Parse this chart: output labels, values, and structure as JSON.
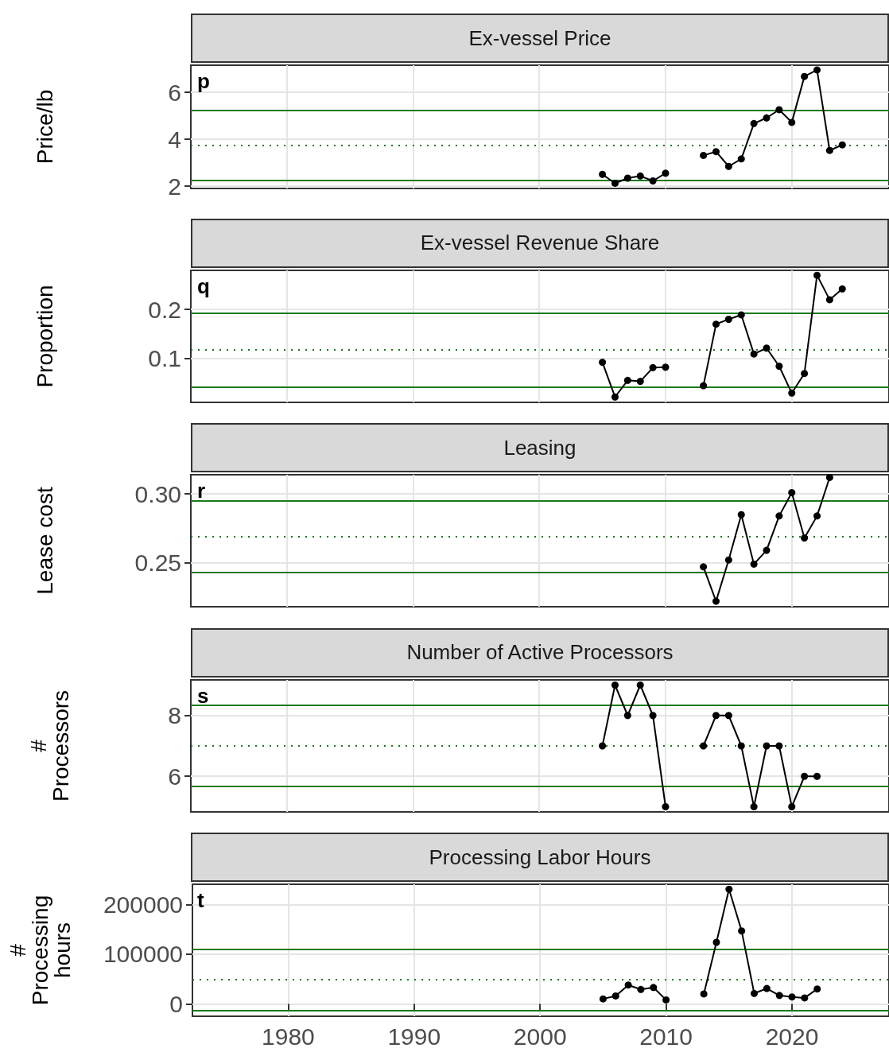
{
  "chart_data": [
    {
      "type": "line",
      "title": "Ex-vessel Price",
      "ylabel": "Price/lb",
      "annotations": [
        "p"
      ],
      "x": [
        2005,
        2006,
        2007,
        2008,
        2009,
        2010,
        2011,
        2012,
        2013,
        2014,
        2015,
        2016,
        2017,
        2018,
        2019,
        2020,
        2021,
        2022,
        2023,
        2024
      ],
      "series": [
        {
          "color": "#000000",
          "values": [
            2.5,
            2.12,
            2.34,
            2.43,
            2.22,
            2.55,
            null,
            null,
            3.31,
            3.47,
            2.84,
            3.16,
            4.67,
            4.91,
            5.26,
            4.72,
            6.68,
            6.96,
            3.52,
            3.76
          ]
        }
      ],
      "xlim": [
        1972.4,
        2027.7
      ],
      "xticks": [
        1980,
        1990,
        2000,
        2010,
        2020
      ],
      "ylim": [
        1.9,
        7.16
      ],
      "yticks": [
        2,
        4,
        6
      ],
      "tick_labels": "y",
      "grid": true,
      "marker": "circle",
      "line_style": "solid",
      "ref_lines": [
        {
          "axis": "y",
          "value": 5.24,
          "color": "#1a7a1a",
          "line_style": "solid"
        },
        {
          "axis": "y",
          "value": 3.73,
          "color": "#1a7a1a",
          "line_style": "dotted"
        },
        {
          "axis": "y",
          "value": 2.26,
          "color": "#1a7a1a",
          "line_style": "solid"
        }
      ]
    },
    {
      "type": "line",
      "title": "Ex-vessel Revenue Share",
      "ylabel": "Proportion",
      "annotations": [
        "q"
      ],
      "x": [
        2005,
        2006,
        2007,
        2008,
        2009,
        2010,
        2011,
        2012,
        2013,
        2014,
        2015,
        2016,
        2017,
        2018,
        2019,
        2020,
        2021,
        2022,
        2023,
        2024
      ],
      "series": [
        {
          "color": "#000000",
          "values": [
            0.092,
            0.021,
            0.055,
            0.053,
            0.081,
            0.082,
            null,
            null,
            0.044,
            0.17,
            0.18,
            0.189,
            0.109,
            0.121,
            0.084,
            0.029,
            0.069,
            0.27,
            0.22,
            0.242
          ]
        }
      ],
      "xlim": [
        1972.4,
        2027.7
      ],
      "xticks": [
        1980,
        1990,
        2000,
        2010,
        2020
      ],
      "ylim": [
        0.01,
        0.28
      ],
      "yticks": [
        0.1,
        0.2
      ],
      "tick_labels": "y",
      "grid": true,
      "marker": "circle",
      "line_style": "solid",
      "ref_lines": [
        {
          "axis": "y",
          "value": 0.193,
          "color": "#1a7a1a",
          "line_style": "solid"
        },
        {
          "axis": "y",
          "value": 0.117,
          "color": "#1a7a1a",
          "line_style": "dotted"
        },
        {
          "axis": "y",
          "value": 0.042,
          "color": "#1a7a1a",
          "line_style": "solid"
        }
      ]
    },
    {
      "type": "line",
      "title": "Leasing",
      "ylabel": "Lease cost",
      "annotations": [
        "r"
      ],
      "x": [
        2013,
        2014,
        2015,
        2016,
        2017,
        2018,
        2019,
        2020,
        2021,
        2022,
        2023
      ],
      "series": [
        {
          "color": "#000000",
          "values": [
            0.247,
            0.222,
            0.252,
            0.285,
            0.249,
            0.259,
            0.284,
            0.301,
            0.268,
            0.284,
            0.312
          ]
        }
      ],
      "xlim": [
        1972.4,
        2027.7
      ],
      "xticks": [
        1980,
        1990,
        2000,
        2010,
        2020
      ],
      "ylim": [
        0.218,
        0.314
      ],
      "yticks": [
        {
          "value": 0.25,
          "label": "0.25"
        },
        {
          "value": 0.3,
          "label": "0.30"
        }
      ],
      "tick_labels": "y",
      "grid": true,
      "marker": "circle",
      "line_style": "solid",
      "ref_lines": [
        {
          "axis": "y",
          "value": 0.295,
          "color": "#1a7a1a",
          "line_style": "solid"
        },
        {
          "axis": "y",
          "value": 0.269,
          "color": "#1a7a1a",
          "line_style": "dotted"
        },
        {
          "axis": "y",
          "value": 0.243,
          "color": "#1a7a1a",
          "line_style": "solid"
        }
      ]
    },
    {
      "type": "line",
      "title": "Number of Active Processors",
      "ylabel": "#\nProcessors",
      "annotations": [
        "s"
      ],
      "x": [
        2005,
        2006,
        2007,
        2008,
        2009,
        2010,
        2011,
        2012,
        2013,
        2014,
        2015,
        2016,
        2017,
        2018,
        2019,
        2020,
        2021,
        2022
      ],
      "series": [
        {
          "color": "#000000",
          "values": [
            7,
            9,
            8,
            9,
            8,
            5,
            null,
            null,
            7,
            8,
            8,
            7,
            5,
            7,
            7,
            5,
            6,
            6
          ]
        }
      ],
      "xlim": [
        1972.4,
        2027.7
      ],
      "xticks": [
        1980,
        1990,
        2000,
        2010,
        2020
      ],
      "ylim": [
        4.83,
        9.17
      ],
      "yticks": [
        6,
        8
      ],
      "tick_labels": "y",
      "grid": true,
      "marker": "circle",
      "line_style": "solid",
      "ref_lines": [
        {
          "axis": "y",
          "value": 8.33,
          "color": "#1a7a1a",
          "line_style": "solid"
        },
        {
          "axis": "y",
          "value": 7,
          "color": "#1a7a1a",
          "line_style": "dotted"
        },
        {
          "axis": "y",
          "value": 5.68,
          "color": "#1a7a1a",
          "line_style": "solid"
        }
      ]
    },
    {
      "type": "line",
      "title": "Processing Labor Hours",
      "ylabel": "#\nProcessing\nhours",
      "annotations": [
        "t"
      ],
      "x": [
        2005,
        2006,
        2007,
        2008,
        2009,
        2010,
        2011,
        2012,
        2013,
        2014,
        2015,
        2016,
        2017,
        2018,
        2019,
        2020,
        2021,
        2022
      ],
      "series": [
        {
          "color": "#000000",
          "values": [
            10000,
            16000,
            38000,
            29000,
            33000,
            8000,
            null,
            null,
            20000,
            124000,
            231000,
            147000,
            21000,
            31000,
            17000,
            14000,
            12000,
            30000
          ]
        }
      ],
      "xlim": [
        1972.4,
        2027.7
      ],
      "xticks": [
        1980,
        1990,
        2000,
        2010,
        2020
      ],
      "ylim": [
        -25000,
        241000
      ],
      "yticks": [
        0,
        100000,
        200000
      ],
      "grid": true,
      "marker": "circle",
      "line_style": "solid",
      "ref_lines": [
        {
          "axis": "y",
          "value": 110000,
          "color": "#1a7a1a",
          "line_style": "solid"
        },
        {
          "axis": "y",
          "value": 49000,
          "color": "#1a7a1a",
          "line_style": "dotted"
        },
        {
          "axis": "y",
          "value": -14000,
          "color": "#1a7a1a",
          "line_style": "solid"
        }
      ]
    }
  ]
}
